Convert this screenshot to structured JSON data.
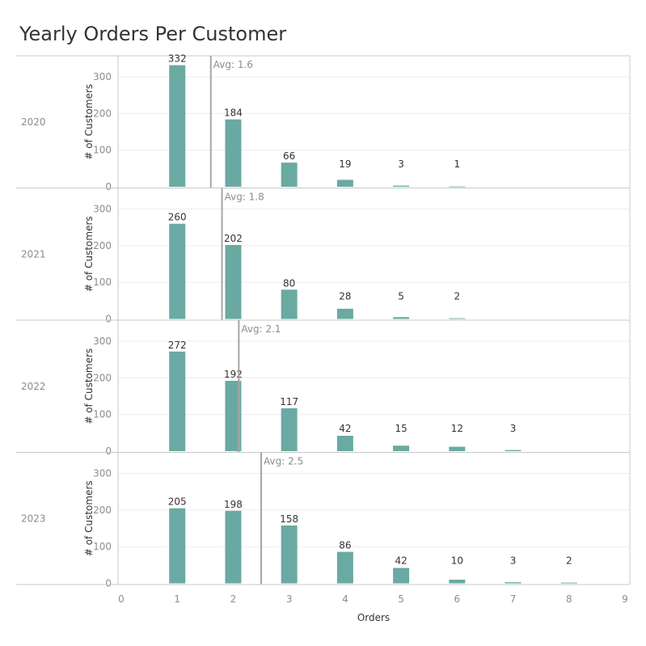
{
  "chart_data": {
    "type": "bar",
    "title": "Yearly Orders Per Customer",
    "xlabel": "Orders",
    "ylabel": "# of Customers",
    "x_ticks": [
      0,
      1,
      2,
      3,
      4,
      5,
      6,
      7,
      8,
      9
    ],
    "xlim": [
      0,
      9
    ],
    "y_ticks": [
      0,
      100,
      200,
      300
    ],
    "ylim": [
      0,
      340
    ],
    "grid": true,
    "bar_color": "#6aaaa2",
    "avg_line_color": "#a6a6a6",
    "panels": [
      {
        "name": "2020",
        "avg_label": "Avg: 1.6",
        "avg": 1.6,
        "x": [
          1,
          2,
          3,
          4,
          5,
          6
        ],
        "values": [
          332,
          184,
          66,
          19,
          3,
          1
        ]
      },
      {
        "name": "2021",
        "avg_label": "Avg: 1.8",
        "avg": 1.8,
        "x": [
          1,
          2,
          3,
          4,
          5,
          6
        ],
        "values": [
          260,
          202,
          80,
          28,
          5,
          2
        ]
      },
      {
        "name": "2022",
        "avg_label": "Avg: 2.1",
        "avg": 2.1,
        "x": [
          1,
          2,
          3,
          4,
          5,
          6,
          7
        ],
        "values": [
          272,
          192,
          117,
          42,
          15,
          12,
          3
        ]
      },
      {
        "name": "2023",
        "avg_label": "Avg: 2.5",
        "avg": 2.5,
        "x": [
          1,
          2,
          3,
          4,
          5,
          6,
          7,
          8
        ],
        "values": [
          205,
          198,
          158,
          86,
          42,
          10,
          3,
          2
        ]
      }
    ]
  }
}
